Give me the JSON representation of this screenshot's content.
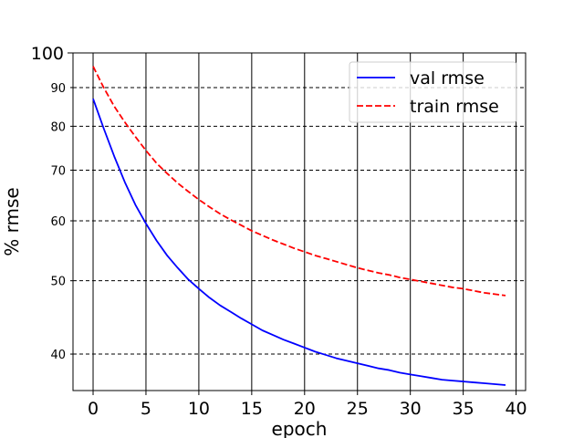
{
  "chart_data": {
    "type": "line",
    "title": "",
    "xlabel": "epoch",
    "ylabel": "% rmse",
    "xlim": [
      -1.9,
      40.9
    ],
    "ylim": [
      35.8,
      100
    ],
    "yscale": "log",
    "grid": true,
    "legend_position": "top-right",
    "x_ticks": [
      0,
      5,
      10,
      15,
      20,
      25,
      30,
      35,
      40
    ],
    "y_ticks_major": [
      100
    ],
    "y_ticks_minor": [
      40,
      50,
      60,
      70,
      80,
      90
    ],
    "x": [
      0,
      1,
      2,
      3,
      4,
      5,
      6,
      7,
      8,
      9,
      10,
      11,
      12,
      13,
      14,
      15,
      16,
      17,
      18,
      19,
      20,
      21,
      22,
      23,
      24,
      25,
      26,
      27,
      28,
      29,
      30,
      31,
      32,
      33,
      34,
      35,
      36,
      37,
      38,
      39
    ],
    "series": [
      {
        "name": "val rmse",
        "color": "#0000ff",
        "style": "solid",
        "values": [
          87.0,
          79.5,
          73.0,
          67.5,
          63.0,
          59.5,
          56.5,
          54.0,
          52.0,
          50.2,
          48.8,
          47.5,
          46.4,
          45.5,
          44.6,
          43.8,
          43.0,
          42.4,
          41.8,
          41.3,
          40.8,
          40.3,
          39.9,
          39.5,
          39.2,
          38.9,
          38.6,
          38.3,
          38.1,
          37.8,
          37.6,
          37.4,
          37.2,
          37.0,
          36.9,
          36.8,
          36.7,
          36.6,
          36.5,
          36.4
        ]
      },
      {
        "name": "train rmse",
        "color": "#ff0000",
        "style": "dashed",
        "values": [
          96.0,
          90.0,
          85.0,
          81.0,
          77.5,
          74.3,
          71.5,
          69.3,
          67.3,
          65.6,
          64.0,
          62.6,
          61.3,
          60.2,
          59.2,
          58.2,
          57.4,
          56.6,
          55.9,
          55.2,
          54.6,
          54.0,
          53.5,
          53.0,
          52.5,
          52.0,
          51.6,
          51.2,
          50.9,
          50.5,
          50.2,
          49.9,
          49.6,
          49.3,
          49.0,
          48.8,
          48.5,
          48.2,
          48.0,
          47.8
        ]
      }
    ]
  }
}
